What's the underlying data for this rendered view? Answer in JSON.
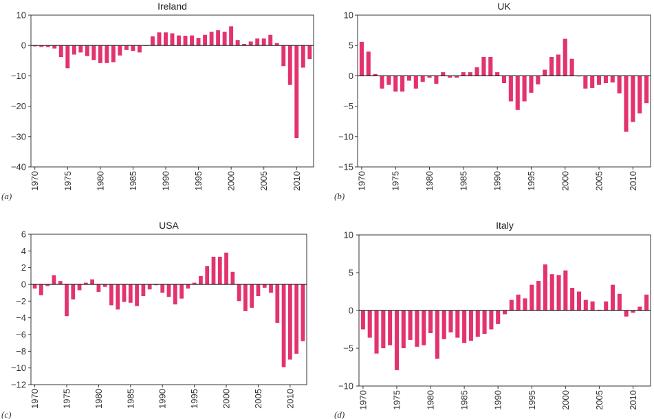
{
  "bar_color": "#e3336e",
  "chart_data": [
    {
      "type": "bar",
      "panel": "(a)",
      "title": "Ireland",
      "xlabel": "",
      "ylabel": "",
      "ylim": [
        -40,
        10
      ],
      "yticks": [
        10,
        0,
        -10,
        -20,
        -30,
        -40
      ],
      "yticklabels": [
        "10",
        "0",
        "−10",
        "−20",
        "−30",
        "−40"
      ],
      "xticks": [
        "1970",
        "1975",
        "1980",
        "1985",
        "1990",
        "1995",
        "2000",
        "2005",
        "2010"
      ],
      "start_year": 1970,
      "values": [
        -0.3,
        -0.5,
        -0.5,
        -1,
        -3.8,
        -7.5,
        -3,
        -2.3,
        -3.5,
        -4.8,
        -5.8,
        -5.8,
        -5.5,
        -3.3,
        -1.5,
        -1.8,
        -2.3,
        0,
        3,
        4.3,
        4.3,
        4,
        3.3,
        3.2,
        3.3,
        2.5,
        3.5,
        4.5,
        5,
        4.5,
        6.3,
        1.8,
        0.5,
        1.3,
        2.3,
        2.3,
        3.5,
        0.8,
        -6.8,
        -13,
        -30.5,
        -7.3,
        -4.5
      ]
    },
    {
      "type": "bar",
      "panel": "(b)",
      "title": "UK",
      "xlabel": "",
      "ylabel": "",
      "ylim": [
        -15,
        10
      ],
      "yticks": [
        10,
        5,
        0,
        -5,
        -10,
        -15
      ],
      "yticklabels": [
        "10",
        "5",
        "0",
        "−5",
        "−10",
        "−15"
      ],
      "xticks": [
        "1970",
        "1975",
        "1980",
        "1985",
        "1990",
        "1995",
        "2000",
        "2005",
        "2010"
      ],
      "start_year": 1970,
      "values": [
        5.6,
        4,
        0.3,
        -2.1,
        -1.5,
        -2.6,
        -2.6,
        -0.8,
        -2.1,
        -1,
        -0.3,
        -1.3,
        0.6,
        -0.3,
        -0.3,
        0.6,
        0.6,
        1.4,
        3.1,
        3.1,
        0.6,
        -1.2,
        -4.2,
        -5.6,
        -4.2,
        -2.8,
        -1.4,
        1,
        3.1,
        3.5,
        6.1,
        2.8,
        -0.1,
        -2.1,
        -2,
        -1.5,
        -1.2,
        -1.1,
        -2.9,
        -9.2,
        -7.6,
        -6.2,
        -4.5
      ]
    },
    {
      "type": "bar",
      "panel": "(c)",
      "title": "USA",
      "xlabel": "",
      "ylabel": "",
      "ylim": [
        -12,
        6
      ],
      "yticks": [
        6,
        4,
        2,
        0,
        -2,
        -4,
        -6,
        -8,
        -10,
        -12
      ],
      "yticklabels": [
        "6",
        "4",
        "2",
        "0",
        "−2",
        "−4",
        "−6",
        "−8",
        "−10",
        "−12"
      ],
      "xticks": [
        "1970",
        "1975",
        "1980",
        "1985",
        "1990",
        "1995",
        "2000",
        "2005",
        "2010"
      ],
      "start_year": 1970,
      "values": [
        -0.5,
        -1.3,
        -0.2,
        1.1,
        0.4,
        -3.8,
        -1.8,
        -0.7,
        0.2,
        0.6,
        -0.9,
        -0.3,
        -2.5,
        -3,
        -2.1,
        -2.2,
        -2.6,
        -1.4,
        -0.6,
        -0.1,
        -1,
        -1.5,
        -2.4,
        -1.7,
        -0.5,
        0.2,
        1,
        2.2,
        3.3,
        3.3,
        3.8,
        1.5,
        -2,
        -3.2,
        -2.8,
        -1.4,
        -0.4,
        -1,
        -4.6,
        -9.9,
        -9,
        -8.3,
        -6.8
      ]
    },
    {
      "type": "bar",
      "panel": "(d)",
      "title": "Italy",
      "xlabel": "",
      "ylabel": "",
      "ylim": [
        -10,
        10
      ],
      "yticks": [
        10,
        5,
        0,
        -5,
        -10
      ],
      "yticklabels": [
        "10",
        "5",
        "0",
        "−5",
        "−10"
      ],
      "xticks": [
        "1970",
        "1975",
        "1980",
        "1985",
        "1990",
        "1995",
        "2000",
        "2005",
        "2010"
      ],
      "start_year": 1970,
      "values": [
        -2.5,
        -3.6,
        -5.7,
        -5,
        -4.6,
        -7.9,
        -5,
        -3.9,
        -4.8,
        -4.6,
        -3,
        -6.4,
        -3.8,
        -2.9,
        -3.6,
        -4.3,
        -4,
        -3.5,
        -3.1,
        -2.5,
        -1.8,
        -0.5,
        1.4,
        2.1,
        1.6,
        3.4,
        3.9,
        6.1,
        4.8,
        4.7,
        5.3,
        3,
        2.5,
        1.4,
        1.2,
        0.1,
        1.2,
        3.4,
        2.2,
        -0.8,
        -0.3,
        0.5,
        2.1
      ]
    }
  ]
}
